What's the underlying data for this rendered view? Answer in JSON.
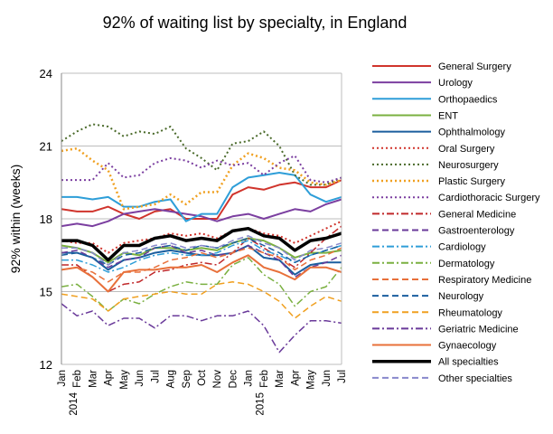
{
  "chart_data": {
    "type": "line",
    "title": "92% of waiting list by specialty, in England",
    "ylabel": "92% within (weeks)",
    "xlabel": "",
    "ylim": [
      12,
      24
    ],
    "yticks": [
      12,
      15,
      18,
      21,
      24
    ],
    "grid": true,
    "legend_position": "right",
    "x": [
      "Jan 2014",
      "Feb",
      "Mar",
      "Apr",
      "May",
      "Jun",
      "Jul",
      "Aug",
      "Sep",
      "Oct",
      "Nov",
      "Dec",
      "Jan 2015",
      "Feb",
      "Mar",
      "Apr",
      "May",
      "Jun",
      "Jul"
    ],
    "year_labels": [
      {
        "index": 0,
        "year": "2014"
      },
      {
        "index": 12,
        "year": "2015"
      }
    ],
    "series": [
      {
        "name": "General Surgery",
        "color": "#d0342c",
        "dash": "solid",
        "width": 2,
        "values": [
          18.4,
          18.3,
          18.3,
          18.5,
          18.2,
          18.0,
          18.3,
          18.4,
          18.0,
          18.0,
          18.0,
          19.0,
          19.3,
          19.2,
          19.4,
          19.5,
          19.3,
          19.3,
          19.6
        ]
      },
      {
        "name": "Urology",
        "color": "#7b3fa0",
        "dash": "solid",
        "width": 2,
        "values": [
          17.7,
          17.8,
          17.7,
          17.9,
          18.2,
          18.3,
          18.4,
          18.3,
          18.2,
          18.1,
          17.9,
          18.1,
          18.2,
          18.0,
          18.2,
          18.4,
          18.3,
          18.6,
          18.8
        ]
      },
      {
        "name": "Orthopaedics",
        "color": "#2e9ed8",
        "dash": "solid",
        "width": 2,
        "values": [
          18.9,
          18.9,
          18.8,
          18.9,
          18.5,
          18.5,
          18.7,
          18.8,
          17.9,
          18.2,
          18.2,
          19.3,
          19.7,
          19.8,
          19.9,
          19.8,
          19.0,
          18.7,
          18.9
        ]
      },
      {
        "name": "ENT",
        "color": "#7ab040",
        "dash": "solid",
        "width": 2,
        "values": [
          16.9,
          16.8,
          16.6,
          16.2,
          16.6,
          16.5,
          16.8,
          16.8,
          16.7,
          16.8,
          16.7,
          17.0,
          17.2,
          17.1,
          16.8,
          16.4,
          16.6,
          16.6,
          16.7
        ]
      },
      {
        "name": "Ophthalmology",
        "color": "#1a5e9e",
        "dash": "solid",
        "width": 2,
        "values": [
          16.6,
          16.6,
          16.4,
          15.9,
          16.3,
          16.4,
          16.6,
          16.7,
          16.6,
          16.5,
          16.5,
          16.6,
          16.9,
          16.4,
          16.3,
          15.7,
          16.1,
          16.2,
          16.2
        ]
      },
      {
        "name": "Oral Surgery",
        "color": "#d0342c",
        "dash": "dot",
        "width": 2,
        "values": [
          17.1,
          17.0,
          17.0,
          16.6,
          17.0,
          17.1,
          17.2,
          17.4,
          17.3,
          17.4,
          17.2,
          17.5,
          17.6,
          17.4,
          17.3,
          17.0,
          17.3,
          17.6,
          17.9
        ]
      },
      {
        "name": "Neurosurgery",
        "color": "#4a6a2a",
        "dash": "dot",
        "width": 2,
        "values": [
          21.2,
          21.6,
          21.9,
          21.8,
          21.4,
          21.6,
          21.5,
          21.8,
          20.9,
          20.5,
          20.0,
          21.1,
          21.2,
          21.6,
          21.0,
          19.8,
          19.4,
          19.4,
          19.7
        ]
      },
      {
        "name": "Plastic Surgery",
        "color": "#f0a020",
        "dash": "dot",
        "width": 2.5,
        "values": [
          20.8,
          20.9,
          20.4,
          20.0,
          18.4,
          18.5,
          18.6,
          19.0,
          18.6,
          19.1,
          19.1,
          20.2,
          20.7,
          20.5,
          20.1,
          20.0,
          19.5,
          19.4,
          19.6
        ]
      },
      {
        "name": "Cardiothoracic Surgery",
        "color": "#7b3fa0",
        "dash": "dot",
        "width": 2,
        "values": [
          19.6,
          19.6,
          19.6,
          20.3,
          19.7,
          19.8,
          20.3,
          20.5,
          20.4,
          20.1,
          20.4,
          20.2,
          20.3,
          19.8,
          20.3,
          20.6,
          19.6,
          19.5,
          19.7
        ]
      },
      {
        "name": "General Medicine",
        "color": "#c0282a",
        "dash": "dashdot",
        "width": 1.5,
        "values": [
          16.1,
          16.1,
          15.6,
          15.0,
          15.3,
          15.4,
          15.8,
          15.9,
          16.1,
          16.2,
          16.1,
          16.6,
          17.2,
          16.8,
          16.4,
          16.0,
          16.6,
          17.2,
          17.7
        ]
      },
      {
        "name": "Gastroenterology",
        "color": "#6a3a9a",
        "dash": "dash",
        "width": 1.5,
        "values": [
          16.6,
          16.7,
          16.4,
          16.0,
          16.3,
          16.4,
          16.8,
          16.9,
          16.6,
          16.7,
          16.5,
          16.6,
          16.9,
          16.6,
          16.3,
          15.6,
          16.0,
          16.2,
          16.5
        ]
      },
      {
        "name": "Cardiology",
        "color": "#2e9ed8",
        "dash": "dashdot",
        "width": 1.5,
        "values": [
          16.3,
          16.3,
          16.1,
          15.8,
          16.0,
          16.3,
          16.5,
          16.6,
          16.5,
          16.5,
          16.6,
          16.9,
          17.1,
          16.7,
          16.5,
          16.2,
          16.5,
          16.7,
          16.9
        ]
      },
      {
        "name": "Dermatology",
        "color": "#7ab040",
        "dash": "dashdot",
        "width": 1.5,
        "values": [
          15.2,
          15.3,
          14.8,
          14.2,
          14.7,
          14.5,
          14.9,
          15.2,
          15.4,
          15.3,
          15.3,
          16.1,
          16.4,
          15.7,
          15.3,
          14.4,
          15.0,
          15.2,
          16.0
        ]
      },
      {
        "name": "Respiratory Medicine",
        "color": "#e8703a",
        "dash": "dash",
        "width": 1.5,
        "values": [
          15.9,
          16.0,
          15.8,
          15.4,
          15.8,
          15.8,
          16.0,
          16.3,
          16.4,
          16.6,
          16.4,
          16.6,
          16.8,
          16.6,
          16.4,
          15.9,
          16.3,
          16.5,
          16.8
        ]
      },
      {
        "name": "Neurology",
        "color": "#1a5e9e",
        "dash": "dash",
        "width": 1.5,
        "values": [
          16.5,
          16.6,
          16.4,
          16.1,
          16.5,
          16.6,
          16.8,
          16.9,
          16.7,
          16.9,
          16.8,
          17.0,
          17.2,
          16.9,
          16.6,
          16.2,
          16.5,
          16.7,
          16.9
        ]
      },
      {
        "name": "Rheumatology",
        "color": "#f0a020",
        "dash": "dash",
        "width": 1.5,
        "values": [
          14.9,
          14.8,
          14.7,
          14.2,
          14.7,
          14.8,
          14.9,
          15.0,
          14.9,
          14.9,
          15.3,
          15.4,
          15.3,
          15.0,
          14.6,
          13.9,
          14.4,
          14.8,
          14.6
        ]
      },
      {
        "name": "Geriatric Medicine",
        "color": "#6a3a9a",
        "dash": "dashdot",
        "width": 1.5,
        "values": [
          14.5,
          14.0,
          14.2,
          13.6,
          13.9,
          13.9,
          13.5,
          14.0,
          14.0,
          13.8,
          14.0,
          14.0,
          14.2,
          13.6,
          12.5,
          13.2,
          13.8,
          13.8,
          13.7
        ]
      },
      {
        "name": "Gynaecology",
        "color": "#e8703a",
        "dash": "solid",
        "width": 2,
        "values": [
          15.9,
          16.0,
          15.6,
          15.0,
          15.8,
          15.9,
          15.9,
          16.0,
          16.0,
          16.1,
          15.8,
          16.2,
          16.5,
          16.0,
          15.8,
          15.5,
          16.0,
          16.0,
          15.8
        ]
      },
      {
        "name": "All specialties",
        "color": "#000000",
        "dash": "solid",
        "width": 3.5,
        "values": [
          17.1,
          17.1,
          16.9,
          16.3,
          16.9,
          16.9,
          17.2,
          17.3,
          17.1,
          17.2,
          17.1,
          17.5,
          17.6,
          17.3,
          17.2,
          16.7,
          17.1,
          17.2,
          17.4
        ]
      },
      {
        "name": "Other specialties",
        "color": "#8888cc",
        "dash": "dash",
        "width": 1.5,
        "values": [
          16.8,
          16.8,
          16.6,
          16.1,
          16.6,
          16.7,
          16.9,
          17.0,
          16.8,
          16.9,
          16.8,
          17.1,
          17.3,
          17.0,
          16.8,
          16.3,
          16.7,
          16.8,
          17.0
        ]
      }
    ]
  }
}
